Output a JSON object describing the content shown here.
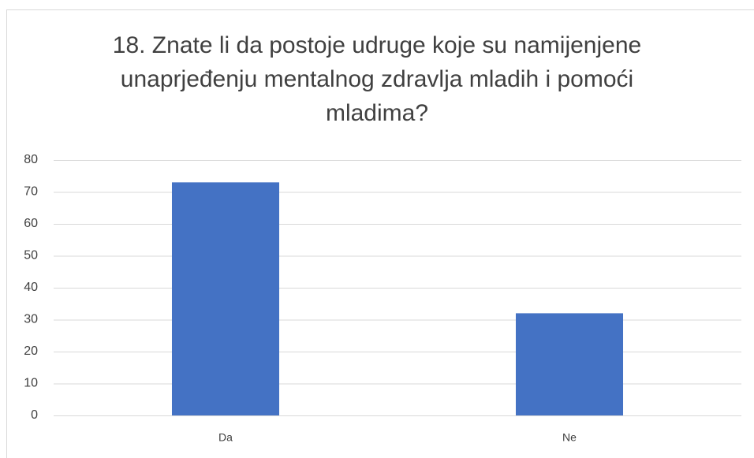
{
  "chart_data": {
    "type": "bar",
    "title": "18. Znate li da postoje udruge koje su namijenjene unaprjeđenju mentalnog zdravlja mladih i pomoći mladima?",
    "categories": [
      "Da",
      "Ne"
    ],
    "values": [
      73,
      32
    ],
    "color": "#4472c4",
    "ylim": [
      0,
      80
    ],
    "yticks": [
      0,
      10,
      20,
      30,
      40,
      50,
      60,
      70,
      80
    ],
    "grid": true
  }
}
